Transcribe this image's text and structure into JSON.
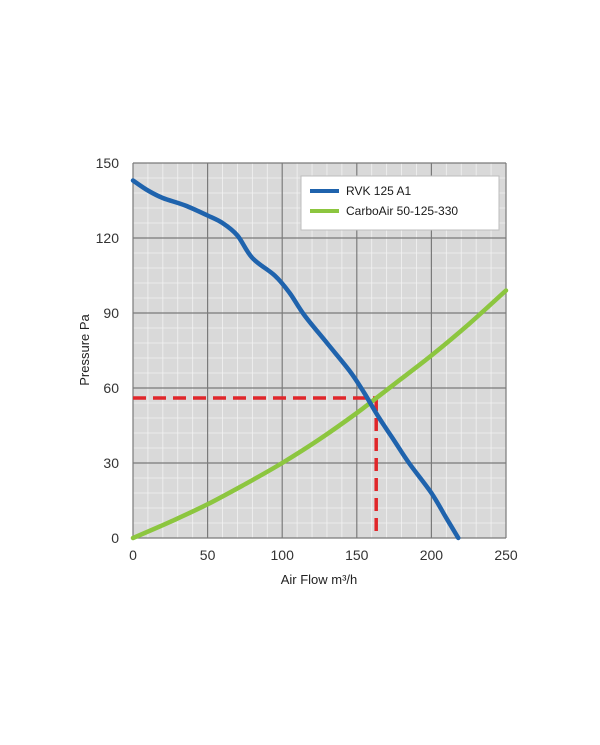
{
  "chart_data": {
    "type": "line",
    "xlabel": "Air Flow m³/h",
    "ylabel": "Pressure Pa",
    "xlim": [
      0,
      250
    ],
    "ylim": [
      0,
      150
    ],
    "x_ticks": [
      0,
      50,
      100,
      150,
      200,
      250
    ],
    "y_ticks": [
      0,
      30,
      60,
      90,
      120,
      150
    ],
    "x_tick_labels": [
      "0",
      "50",
      "100",
      "150",
      "200",
      "250"
    ],
    "y_tick_labels": [
      "0",
      "30",
      "60",
      "90",
      "120",
      "150"
    ],
    "minor_step_x": 10,
    "minor_step_y": 6,
    "grid": true,
    "legend_position": "top-right",
    "series": [
      {
        "name": "RVK 125 A1",
        "color": "#1f63ad",
        "points": [
          [
            0,
            143
          ],
          [
            10,
            139
          ],
          [
            20,
            136
          ],
          [
            35,
            133
          ],
          [
            50,
            129
          ],
          [
            60,
            126
          ],
          [
            70,
            121
          ],
          [
            80,
            112
          ],
          [
            95,
            105
          ],
          [
            105,
            98
          ],
          [
            115,
            89
          ],
          [
            130,
            78
          ],
          [
            145,
            67
          ],
          [
            155,
            58
          ],
          [
            165,
            48
          ],
          [
            175,
            39
          ],
          [
            185,
            30
          ],
          [
            200,
            18
          ],
          [
            210,
            8
          ],
          [
            218,
            0
          ]
        ]
      },
      {
        "name": "CarboAir 50-125-330",
        "color": "#8cc63f",
        "points": [
          [
            0,
            0
          ],
          [
            25,
            6.5
          ],
          [
            50,
            13.5
          ],
          [
            75,
            21.5
          ],
          [
            100,
            30
          ],
          [
            125,
            39.5
          ],
          [
            150,
            50
          ],
          [
            162,
            55.5
          ],
          [
            175,
            61.5
          ],
          [
            200,
            73
          ],
          [
            225,
            85.5
          ],
          [
            250,
            99
          ]
        ]
      }
    ],
    "operating_point": {
      "x": 163,
      "y": 56,
      "color": "#e0262a"
    }
  }
}
